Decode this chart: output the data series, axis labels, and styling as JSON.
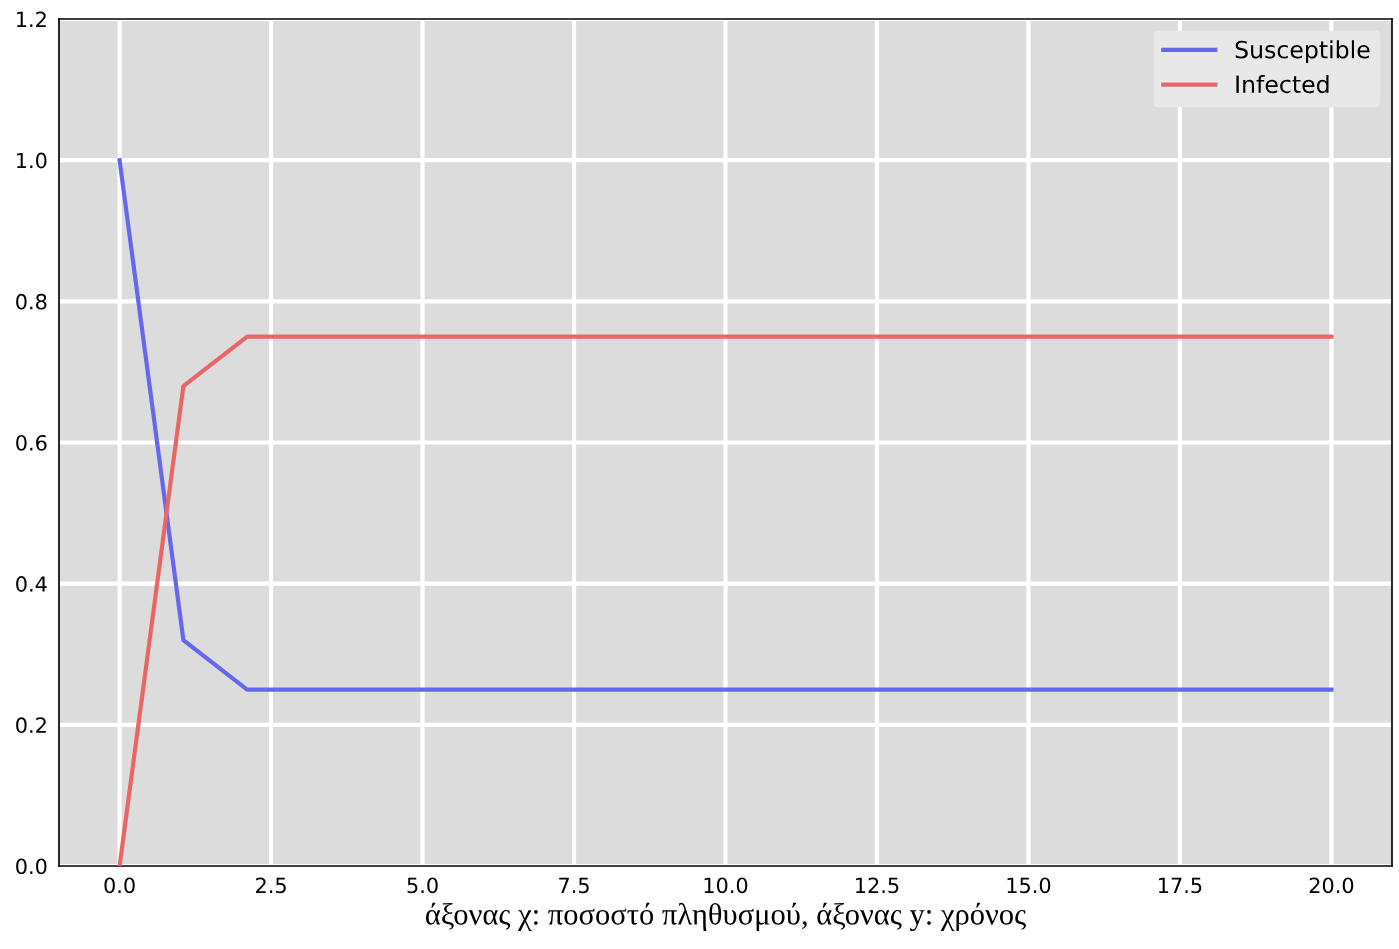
{
  "chart_data": {
    "type": "line",
    "xlabel": "άξονας χ: ποσοστό πληθυσμού, άξονας y: χρόνος",
    "series": [
      {
        "name": "Susceptible",
        "color": "#6666ee",
        "x": [
          0,
          1.053,
          2.105,
          20
        ],
        "values": [
          1.0,
          0.32,
          0.25,
          0.25
        ]
      },
      {
        "name": "Infected",
        "color": "#ea6666",
        "x": [
          0,
          1.053,
          2.105,
          20
        ],
        "values": [
          0.0,
          0.68,
          0.75,
          0.75
        ]
      }
    ],
    "xlim": [
      -1,
      21
    ],
    "xticks": [
      {
        "value": 0,
        "label": "0.0"
      },
      {
        "value": 2.5,
        "label": "2.5"
      },
      {
        "value": 5,
        "label": "5.0"
      },
      {
        "value": 7.5,
        "label": "7.5"
      },
      {
        "value": 10,
        "label": "10.0"
      },
      {
        "value": 12.5,
        "label": "12.5"
      },
      {
        "value": 15,
        "label": "15.0"
      },
      {
        "value": 17.5,
        "label": "17.5"
      },
      {
        "value": 20,
        "label": "20.0"
      }
    ],
    "ylim": [
      0,
      1.2
    ],
    "yticks": [
      {
        "value": 0,
        "label": "0.0"
      },
      {
        "value": 0.2,
        "label": "0.2"
      },
      {
        "value": 0.4,
        "label": "0.4"
      },
      {
        "value": 0.6,
        "label": "0.6"
      },
      {
        "value": 0.8,
        "label": "0.8"
      },
      {
        "value": 1.0,
        "label": "1.0"
      },
      {
        "value": 1.2,
        "label": "1.2"
      }
    ],
    "grid": true,
    "legend": "top right",
    "line_style": "solid",
    "marker": "none"
  }
}
